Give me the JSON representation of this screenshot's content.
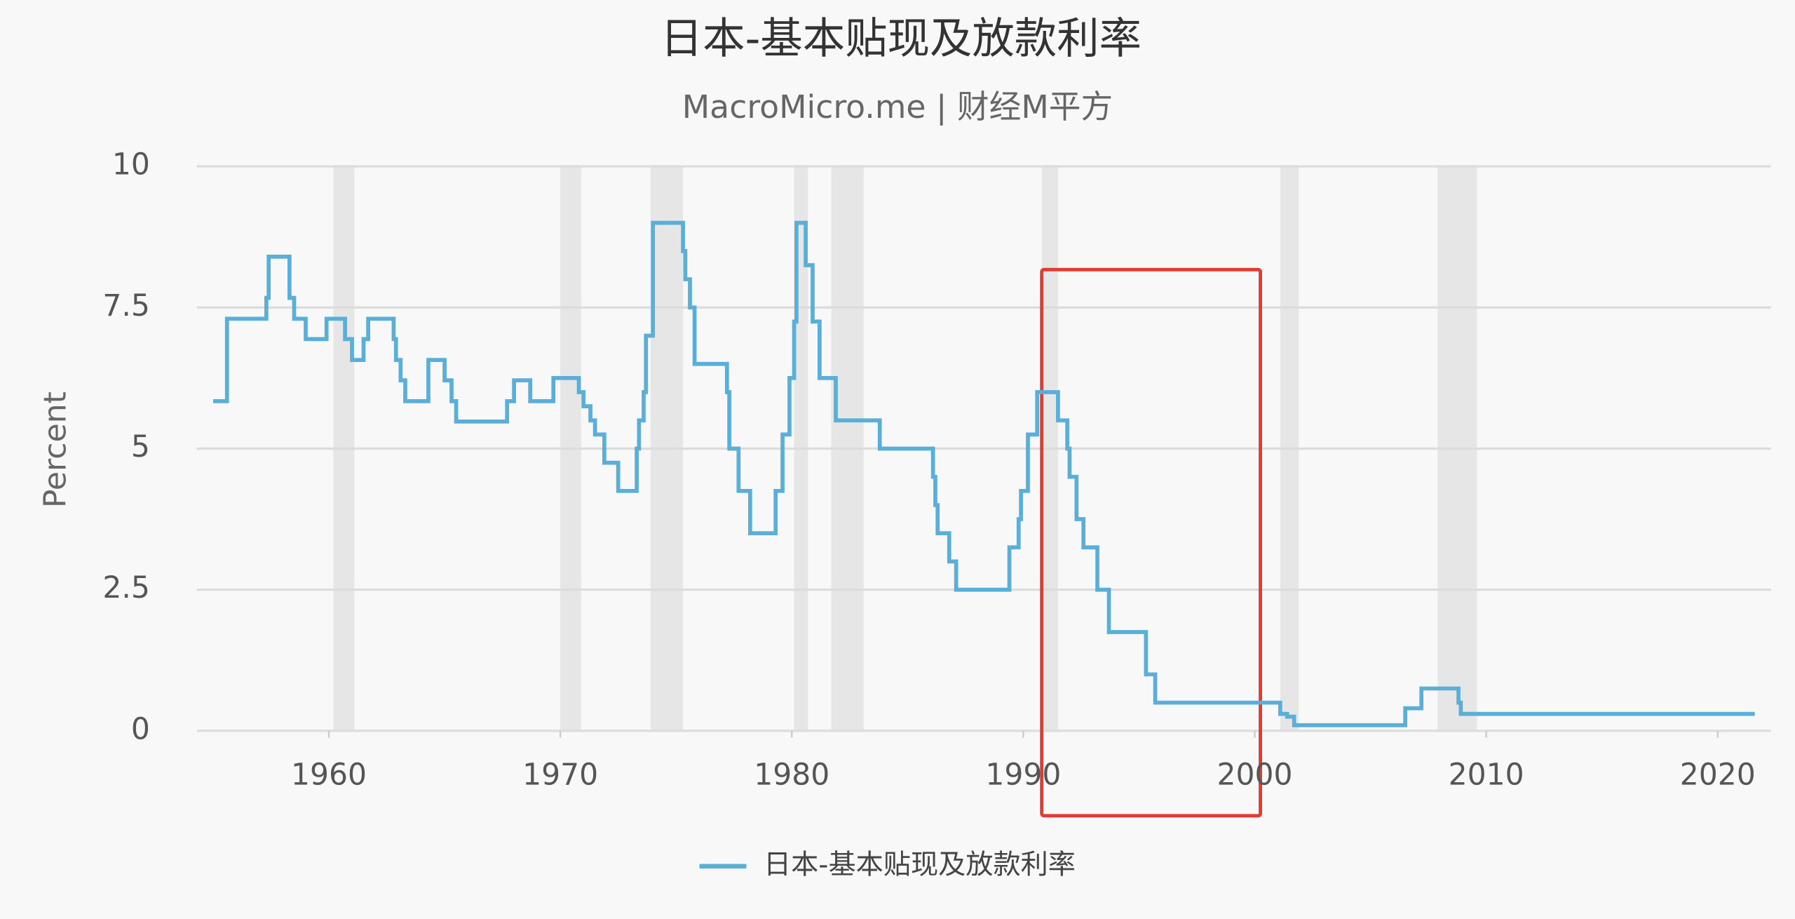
{
  "chart_data": {
    "type": "step",
    "title": "日本-基本贴现及放款利率",
    "subtitle": "MacroMicro.me | 财经M平方",
    "ylabel": "Percent",
    "xlim": [
      1954.3,
      2022.3
    ],
    "ylim": [
      0,
      10
    ],
    "xticks": [
      1960,
      1970,
      1980,
      1990,
      2000,
      2010,
      2020
    ],
    "yticks": [
      0,
      2.5,
      5,
      7.5,
      10
    ],
    "grid": true,
    "shaded_ranges": [
      [
        1960.2,
        1961.1
      ],
      [
        1970.0,
        1970.9
      ],
      [
        1973.9,
        1975.3
      ],
      [
        1980.1,
        1980.7
      ],
      [
        1981.7,
        1983.1
      ],
      [
        1990.8,
        1991.5
      ],
      [
        2001.1,
        2001.9
      ],
      [
        2007.9,
        2009.6
      ]
    ],
    "shade_color": "#e6e6e6",
    "legend": "bottom",
    "series": [
      {
        "name": "日本-基本贴现及放款利率",
        "color": "#5aafd8",
        "x": [
          1955.0,
          1955.6,
          1957.3,
          1957.4,
          1958.3,
          1958.5,
          1959.0,
          1959.9,
          1960.7,
          1961.0,
          1961.5,
          1961.7,
          1962.8,
          1962.9,
          1963.1,
          1963.3,
          1964.3,
          1965.0,
          1965.3,
          1965.5,
          1967.7,
          1968.0,
          1968.7,
          1969.7,
          1970.8,
          1971.0,
          1971.3,
          1971.5,
          1971.9,
          1972.5,
          1973.3,
          1973.4,
          1973.6,
          1973.7,
          1974.0,
          1975.3,
          1975.4,
          1975.6,
          1975.8,
          1977.2,
          1977.3,
          1977.7,
          1978.2,
          1979.3,
          1979.6,
          1979.9,
          1980.1,
          1980.2,
          1980.6,
          1980.9,
          1981.2,
          1981.9,
          1983.8,
          1986.1,
          1986.2,
          1986.3,
          1986.8,
          1987.1,
          1989.4,
          1989.8,
          1989.9,
          1990.2,
          1990.6,
          1991.5,
          1991.9,
          1992.0,
          1992.3,
          1992.6,
          1993.2,
          1993.7,
          1995.3,
          1995.7,
          2001.1,
          2001.4,
          2001.7,
          2006.5,
          2007.2,
          2008.8,
          2008.9,
          2021.6
        ],
        "values": [
          5.84,
          7.3,
          7.67,
          8.4,
          7.67,
          7.3,
          6.94,
          7.3,
          6.94,
          6.57,
          6.94,
          7.3,
          6.94,
          6.57,
          6.21,
          5.84,
          6.57,
          6.21,
          5.84,
          5.48,
          5.84,
          6.21,
          5.84,
          6.25,
          6.0,
          5.75,
          5.5,
          5.25,
          4.75,
          4.25,
          5.0,
          5.5,
          6.0,
          7.0,
          9.0,
          8.5,
          8.0,
          7.5,
          6.5,
          6.0,
          5.0,
          4.25,
          3.5,
          4.25,
          5.25,
          6.25,
          7.25,
          9.0,
          8.25,
          7.25,
          6.25,
          5.5,
          5.0,
          4.5,
          4.0,
          3.5,
          3.0,
          2.5,
          3.25,
          3.75,
          4.25,
          5.25,
          6.0,
          5.5,
          5.0,
          4.5,
          3.75,
          3.25,
          2.5,
          1.75,
          1.0,
          0.5,
          0.3,
          0.25,
          0.1,
          0.4,
          0.75,
          0.5,
          0.3,
          0.3
        ]
      }
    ]
  }
}
